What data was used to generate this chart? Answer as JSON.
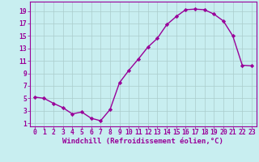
{
  "x": [
    0,
    1,
    2,
    3,
    4,
    5,
    6,
    7,
    8,
    9,
    10,
    11,
    12,
    13,
    14,
    15,
    16,
    17,
    18,
    19,
    20,
    21,
    22,
    23
  ],
  "y": [
    5.2,
    5.0,
    4.2,
    3.5,
    2.5,
    2.8,
    1.8,
    1.4,
    3.2,
    7.5,
    9.5,
    11.3,
    13.2,
    14.6,
    16.8,
    18.1,
    19.2,
    19.3,
    19.2,
    18.5,
    17.4,
    15.0,
    10.3,
    10.2
  ],
  "line_color": "#990099",
  "marker": "D",
  "markersize": 2.2,
  "linewidth": 1.0,
  "background_color": "#c8eef0",
  "grid_color": "#aacccc",
  "xlabel": "Windchill (Refroidissement éolien,°C)",
  "xlabel_fontsize": 6.5,
  "xtick_labels": [
    "0",
    "1",
    "2",
    "3",
    "4",
    "5",
    "6",
    "7",
    "8",
    "9",
    "10",
    "11",
    "12",
    "13",
    "14",
    "15",
    "16",
    "17",
    "18",
    "19",
    "20",
    "21",
    "22",
    "23"
  ],
  "ytick_labels": [
    "1",
    "3",
    "5",
    "7",
    "9",
    "11",
    "13",
    "15",
    "17",
    "19"
  ],
  "ytick_values": [
    1,
    3,
    5,
    7,
    9,
    11,
    13,
    15,
    17,
    19
  ],
  "xlim": [
    -0.5,
    23.5
  ],
  "ylim": [
    0.5,
    20.5
  ],
  "tick_color": "#990099",
  "tick_fontsize": 5.8,
  "spine_color": "#990099"
}
